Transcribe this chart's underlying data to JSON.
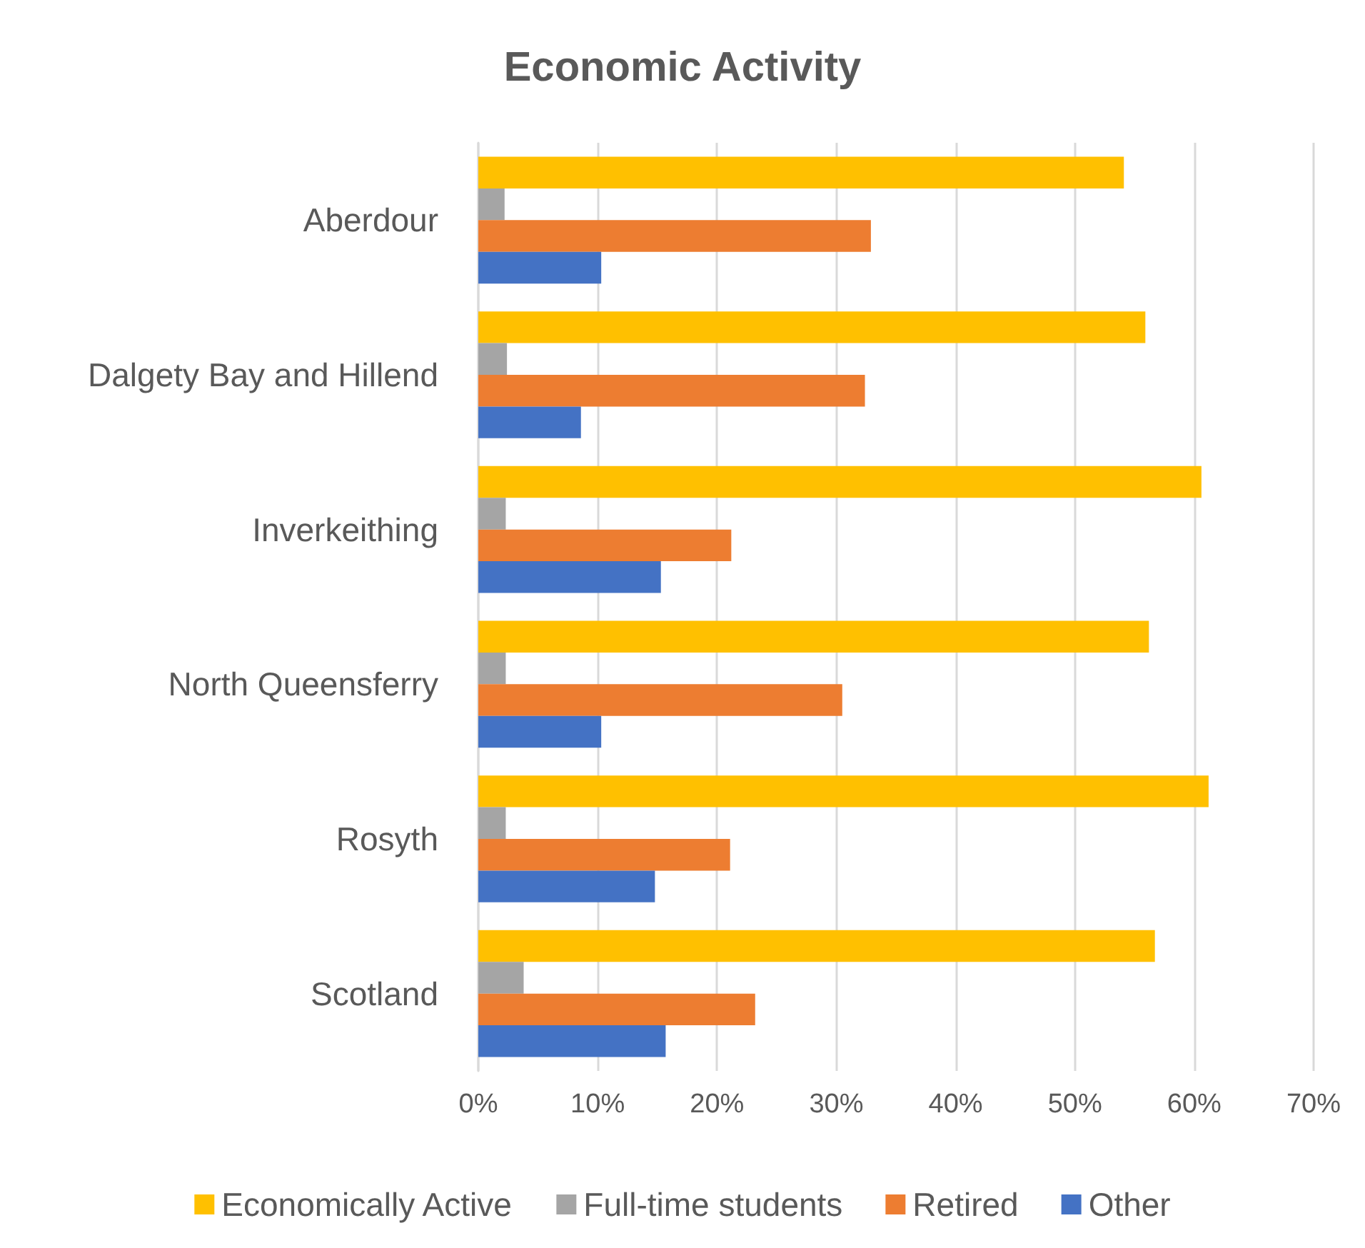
{
  "chart_data": {
    "type": "bar",
    "orientation": "horizontal",
    "title": "Economic Activity",
    "categories": [
      "Aberdour",
      "Dalgety Bay and Hillend",
      "Inverkeithing",
      "North Queensferry",
      "Rosyth",
      "Scotland"
    ],
    "series": [
      {
        "name": "Economically Active",
        "color": "#ffc000",
        "values": [
          54.1,
          55.9,
          60.6,
          56.2,
          61.2,
          56.7
        ]
      },
      {
        "name": "Full-time students",
        "color": "#a5a5a5",
        "values": [
          2.2,
          2.4,
          2.3,
          2.3,
          2.3,
          3.8
        ]
      },
      {
        "name": "Retired",
        "color": "#ed7d31",
        "values": [
          32.9,
          32.4,
          21.2,
          30.5,
          21.1,
          23.2
        ]
      },
      {
        "name": "Other",
        "color": "#4472c4",
        "values": [
          10.3,
          8.6,
          15.3,
          10.3,
          14.8,
          15.7
        ]
      }
    ],
    "xlim": [
      0,
      70
    ],
    "xticks": [
      {
        "value": 0,
        "label": "0%"
      },
      {
        "value": 10,
        "label": "10%"
      },
      {
        "value": 20,
        "label": "20%"
      },
      {
        "value": 30,
        "label": "30%"
      },
      {
        "value": 40,
        "label": "40%"
      },
      {
        "value": 50,
        "label": "50%"
      },
      {
        "value": 60,
        "label": "60%"
      },
      {
        "value": 70,
        "label": "70%"
      }
    ],
    "grid": "x",
    "legend": "bottom"
  }
}
